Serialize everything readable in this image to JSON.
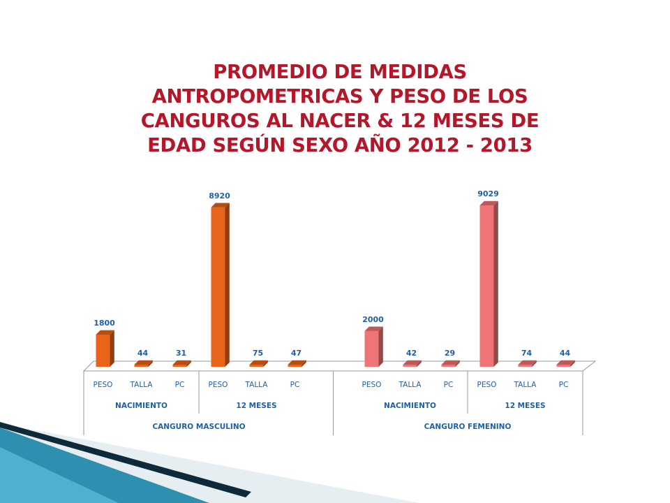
{
  "title_lines": [
    "PROMEDIO DE MEDIDAS",
    "ANTROPOMETRICAS Y PESO DE LOS",
    "CANGUROS AL NACER & 12 MESES DE",
    "EDAD  SEGÚN SEXO AÑO 2012 - 2013"
  ],
  "colors": {
    "title": "#b5172a",
    "masculino": "#e8641a",
    "femenino": "#ee7475",
    "labels": "#1f5fa8",
    "decor_dark": "#0d2a3a",
    "decor_teal": "#2e8fb0"
  },
  "chart_data": {
    "type": "bar",
    "title": "PROMEDIO DE MEDIDAS ANTROPOMETRICAS Y PESO DE LOS CANGUROS AL NACER & 12 MESES DE EDAD  SEGÚN SEXO AÑO 2012 - 2013",
    "style": "3d-column",
    "grid": false,
    "legend": "none",
    "ylim": [
      0,
      9500
    ],
    "groups": [
      {
        "label": "CANGURO MASCULINO",
        "color": "#e8641a",
        "subgroups": [
          {
            "label": "NACIMIENTO",
            "categories": [
              "PESO",
              "TALLA",
              "PC"
            ],
            "values": [
              1800,
              44,
              31
            ]
          },
          {
            "label": "12 MESES",
            "categories": [
              "PESO",
              "TALLA",
              "PC"
            ],
            "values": [
              8920,
              75,
              47
            ]
          }
        ]
      },
      {
        "label": "CANGURO FEMENINO",
        "color": "#ee7475",
        "subgroups": [
          {
            "label": "NACIMIENTO",
            "categories": [
              "PESO",
              "TALLA",
              "PC"
            ],
            "values": [
              2000,
              42,
              29
            ]
          },
          {
            "label": "12 MESES",
            "categories": [
              "PESO",
              "TALLA",
              "PC"
            ],
            "values": [
              9029,
              74,
              44
            ]
          }
        ]
      }
    ]
  }
}
